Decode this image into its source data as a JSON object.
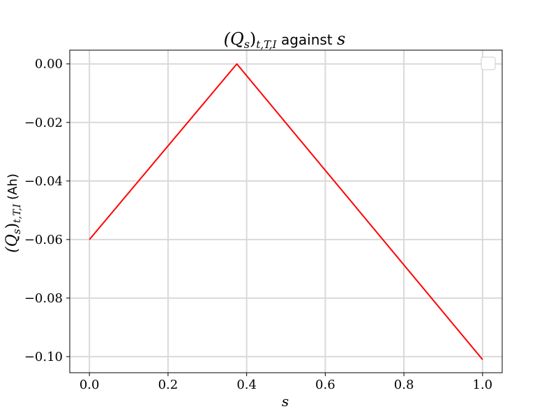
{
  "chart_data": {
    "type": "line",
    "title": {
      "math_main": "(Q",
      "math_sub": "s",
      "math_close": ")",
      "math_subscript": "t,T,I",
      "text": " against ",
      "math_var": "s"
    },
    "xlabel": "s",
    "ylabel": {
      "math_main": "(Q",
      "math_sub": "s",
      "math_close": ")",
      "math_subscript": "t,T,I",
      "text": " (Ah)"
    },
    "xlim": [
      -0.05,
      1.05
    ],
    "ylim": [
      -0.1055,
      0.0047
    ],
    "x_ticks": [
      0.0,
      0.2,
      0.4,
      0.6,
      0.8,
      1.0
    ],
    "x_tick_labels": [
      "0.0",
      "0.2",
      "0.4",
      "0.6",
      "0.8",
      "1.0"
    ],
    "y_ticks": [
      0.0,
      -0.02,
      -0.04,
      -0.06,
      -0.08,
      -0.1
    ],
    "y_tick_labels": [
      "0.00",
      "−0.02",
      "−0.04",
      "−0.06",
      "−0.08",
      "−0.10"
    ],
    "grid": true,
    "legend_placement": "top-right",
    "colors": {
      "line": "#ff0000",
      "grid": "#d9d9d9",
      "axes": "#000000"
    },
    "series": [
      {
        "color": "#ff0000",
        "x": [
          0.0,
          0.375,
          1.0
        ],
        "y": [
          -0.06,
          0.0,
          -0.101
        ]
      }
    ]
  }
}
